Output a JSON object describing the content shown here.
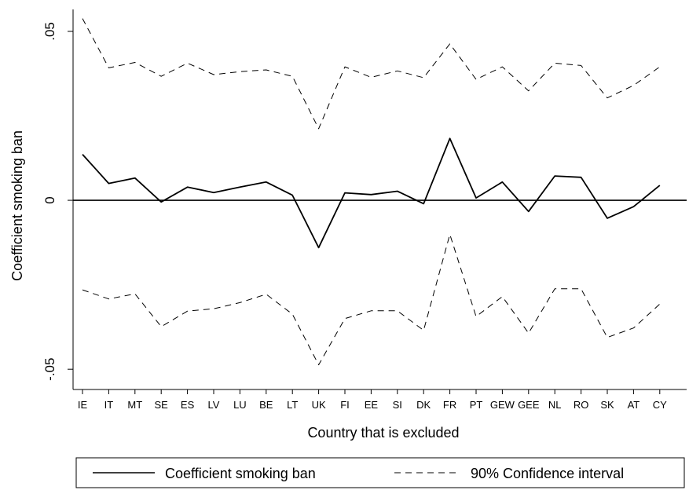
{
  "chart_data": {
    "type": "line",
    "title": "",
    "xlabel": "Country that is excluded",
    "ylabel": "Coefficient smoking ban",
    "categories": [
      "IE",
      "IT",
      "MT",
      "SE",
      "ES",
      "LV",
      "LU",
      "BE",
      "LT",
      "UK",
      "FI",
      "EE",
      "SI",
      "DK",
      "FR",
      "PT",
      "GEW",
      "GEE",
      "NL",
      "RO",
      "SK",
      "AT",
      "CY"
    ],
    "x_tick_labels": [
      "IE",
      "IT",
      "MT",
      "SE",
      "ES",
      "LV",
      "LU",
      "BE",
      "LT",
      "UK",
      "FI",
      "EE",
      "SI",
      "DK",
      "FR",
      "PT",
      "GEW",
      "GEE",
      "NL",
      "RO",
      "SK",
      "AT",
      "CY"
    ],
    "y_ticks": [
      -0.05,
      0,
      0.05
    ],
    "y_tick_labels": [
      "-.05",
      "0",
      ".05"
    ],
    "ylim": [
      -0.056,
      0.0565
    ],
    "reference_line_y": 0,
    "grid": false,
    "legend_position": "bottom",
    "series": [
      {
        "name": "Coefficient smoking ban",
        "style": "solid",
        "color": "#000000",
        "values": [
          0.0136,
          0.005,
          0.0066,
          -0.0005,
          0.0039,
          0.0023,
          0.0039,
          0.0054,
          0.0015,
          -0.014,
          0.0022,
          0.0017,
          0.0027,
          -0.001,
          0.0183,
          0.0007,
          0.0054,
          -0.0033,
          0.0072,
          0.0068,
          -0.0053,
          -0.0019,
          0.0044
        ]
      },
      {
        "name": "90% Confidence interval",
        "style": "dashed",
        "color": "#000000",
        "values": [
          0.0538,
          0.0392,
          0.0408,
          0.0367,
          0.0406,
          0.0372,
          0.0381,
          0.0386,
          0.0367,
          0.0212,
          0.0395,
          0.0364,
          0.0383,
          0.0363,
          0.0463,
          0.0358,
          0.0395,
          0.0324,
          0.0406,
          0.0399,
          0.0303,
          0.034,
          0.0395
        ]
      },
      {
        "name": "",
        "style": "dashed",
        "color": "#000000",
        "values": [
          -0.0265,
          -0.0292,
          -0.0277,
          -0.0374,
          -0.0328,
          -0.0321,
          -0.0303,
          -0.0278,
          -0.0337,
          -0.0487,
          -0.035,
          -0.0327,
          -0.0327,
          -0.0385,
          -0.0101,
          -0.0344,
          -0.0285,
          -0.0393,
          -0.0262,
          -0.0262,
          -0.0406,
          -0.0378,
          -0.0307
        ]
      }
    ]
  }
}
